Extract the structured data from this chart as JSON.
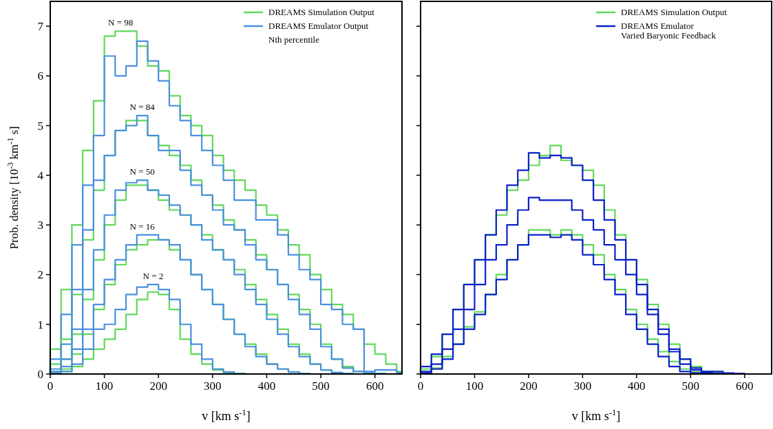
{
  "chart_data": [
    {
      "type": "histogram",
      "xlabel": "v [km s$^{-1}$]",
      "ylabel": "Prob. density [10$^{-3}$ km$^{-1}$ s]",
      "xlim": [
        0,
        650
      ],
      "ylim": [
        0,
        7.5
      ],
      "xticks": [
        0,
        100,
        200,
        300,
        400,
        500,
        600
      ],
      "yticks": [
        0,
        1,
        2,
        3,
        4,
        5,
        6,
        7
      ],
      "legend": "top right",
      "grid": false,
      "bins": [
        0,
        20,
        40,
        60,
        80,
        100,
        120,
        140,
        160,
        180,
        200,
        220,
        240,
        260,
        280,
        300,
        320,
        340,
        360,
        380,
        400,
        420,
        440,
        460,
        480,
        500,
        520,
        540,
        560,
        580,
        600,
        620,
        640,
        650
      ],
      "annotations": [
        "N = 98",
        "N = 84",
        "N = 50",
        "N = 16",
        "N = 2",
        "Nth percentile"
      ],
      "series": [
        {
          "name": "DREAMS Simulation Output",
          "color": "#5fd85a",
          "values": [
            0.5,
            1.7,
            3.0,
            4.5,
            5.5,
            6.8,
            6.9,
            6.9,
            6.6,
            6.2,
            6.1,
            5.6,
            5.2,
            5.0,
            4.8,
            4.4,
            4.1,
            3.9,
            3.7,
            3.4,
            3.2,
            2.9,
            2.6,
            2.4,
            2.0,
            1.7,
            1.4,
            1.2,
            0.9,
            0.6,
            0.4,
            0.2,
            0.05
          ]
        },
        {
          "name": "DREAMS Emulator Output",
          "color": "#4a8fe0",
          "values": [
            0.3,
            1.2,
            2.6,
            3.8,
            4.8,
            6.4,
            6.0,
            6.2,
            6.7,
            6.3,
            5.9,
            5.4,
            5.1,
            4.8,
            4.5,
            4.2,
            3.9,
            3.5,
            3.5,
            3.1,
            3.1,
            2.8,
            2.4,
            2.1,
            1.9,
            1.4,
            1.3,
            1.0,
            0.9,
            0.05,
            0.08,
            0.08,
            0.03
          ]
        },
        {
          "color": "#5ed85b",
          "values": [
            0.2,
            0.7,
            1.6,
            2.7,
            3.7,
            4.4,
            4.9,
            5.1,
            5.1,
            4.8,
            4.6,
            4.4,
            4.2,
            3.9,
            3.6,
            3.4,
            3.1,
            2.9,
            2.7,
            2.4,
            2.1,
            1.8,
            1.6,
            1.3,
            1.0,
            0.6,
            0.3,
            0.15,
            0.05,
            0.02,
            0.01,
            0,
            0
          ]
        },
        {
          "color": "#4b8fe0",
          "values": [
            0.1,
            0.6,
            1.7,
            2.9,
            3.9,
            4.4,
            4.9,
            5.0,
            5.2,
            4.8,
            4.5,
            4.5,
            4.1,
            3.8,
            3.6,
            3.3,
            3.0,
            2.9,
            2.6,
            2.3,
            2.1,
            1.8,
            1.5,
            1.2,
            0.9,
            0.55,
            0.3,
            0.12,
            0.05,
            0.02,
            0.01,
            0,
            0
          ]
        },
        {
          "color": "#5fd95a",
          "values": [
            0.05,
            0.3,
            0.8,
            1.5,
            2.3,
            3.0,
            3.5,
            3.8,
            3.8,
            3.7,
            3.5,
            3.3,
            3.2,
            3.0,
            2.8,
            2.5,
            2.3,
            2.1,
            1.8,
            1.5,
            1.2,
            0.9,
            0.6,
            0.4,
            0.2,
            0.08,
            0.03,
            0.01,
            0,
            0,
            0,
            0,
            0
          ]
        },
        {
          "color": "#4a90e0",
          "values": [
            0.05,
            0.3,
            0.9,
            1.7,
            2.5,
            3.2,
            3.7,
            3.85,
            3.9,
            3.7,
            3.6,
            3.4,
            3.2,
            3.0,
            2.7,
            2.5,
            2.3,
            2.0,
            1.7,
            1.4,
            1.1,
            0.8,
            0.55,
            0.35,
            0.2,
            0.08,
            0.03,
            0.01,
            0,
            0,
            0,
            0,
            0
          ]
        },
        {
          "color": "#60d85a",
          "values": [
            0.02,
            0.1,
            0.4,
            0.8,
            1.3,
            1.8,
            2.2,
            2.5,
            2.6,
            2.7,
            2.7,
            2.5,
            2.3,
            2.0,
            1.7,
            1.4,
            1.1,
            0.8,
            0.6,
            0.4,
            0.2,
            0.1,
            0.04,
            0.01,
            0,
            0,
            0,
            0,
            0,
            0,
            0,
            0,
            0
          ]
        },
        {
          "color": "#4a8fe1",
          "values": [
            0.02,
            0.15,
            0.5,
            0.9,
            1.4,
            1.9,
            2.3,
            2.6,
            2.8,
            2.8,
            2.7,
            2.6,
            2.3,
            2.0,
            1.7,
            1.4,
            1.1,
            0.8,
            0.55,
            0.35,
            0.2,
            0.1,
            0.04,
            0.01,
            0,
            0,
            0,
            0,
            0,
            0,
            0,
            0,
            0
          ]
        },
        {
          "color": "#5fd75a",
          "values": [
            0,
            0.05,
            0.15,
            0.3,
            0.5,
            0.7,
            0.9,
            1.2,
            1.5,
            1.65,
            1.6,
            1.3,
            0.7,
            0.4,
            0.2,
            0.08,
            0.03,
            0.01,
            0,
            0,
            0,
            0,
            0,
            0,
            0,
            0,
            0,
            0,
            0,
            0,
            0,
            0,
            0
          ]
        },
        {
          "color": "#498fe0",
          "values": [
            0,
            0.05,
            0.2,
            0.5,
            0.9,
            1.0,
            1.3,
            1.6,
            1.75,
            1.8,
            1.7,
            1.5,
            1.0,
            0.6,
            0.3,
            0.1,
            0.04,
            0.01,
            0,
            0,
            0,
            0,
            0,
            0,
            0,
            0,
            0,
            0,
            0,
            0,
            0,
            0,
            0
          ]
        }
      ]
    },
    {
      "type": "histogram",
      "xlabel": "v [km s$^{-1}$]",
      "xlim": [
        0,
        650
      ],
      "ylim": [
        0,
        7.5
      ],
      "xticks": [
        0,
        100,
        200,
        300,
        400,
        500,
        600
      ],
      "yticks": [
        0,
        1,
        2,
        3,
        4,
        5,
        6,
        7
      ],
      "tick_labels": "x",
      "legend": "top right",
      "grid": false,
      "bins": [
        0,
        20,
        40,
        60,
        80,
        100,
        120,
        140,
        160,
        180,
        200,
        220,
        240,
        260,
        280,
        300,
        320,
        340,
        360,
        380,
        400,
        420,
        440,
        460,
        480,
        500,
        520,
        540,
        560,
        580,
        600,
        620,
        640,
        650
      ],
      "series": [
        {
          "name": "DREAMS Simulation Output",
          "color": "#5fd85a",
          "values": [
            0.1,
            0.35,
            0.8,
            1.3,
            1.8,
            2.3,
            2.8,
            3.2,
            3.7,
            3.9,
            4.2,
            4.4,
            4.6,
            4.3,
            4.2,
            4.1,
            3.8,
            3.3,
            2.8,
            2.3,
            1.9,
            1.4,
            1.0,
            0.6,
            0.3,
            0.15,
            0.05,
            0.03,
            0.01,
            0,
            0,
            0,
            0
          ]
        },
        {
          "color": "#5ed85b",
          "values": [
            0.02,
            0.12,
            0.35,
            0.6,
            0.95,
            1.25,
            1.6,
            2.0,
            2.3,
            2.6,
            2.9,
            2.9,
            2.8,
            2.9,
            2.8,
            2.6,
            2.4,
            2.0,
            1.7,
            1.3,
            1.0,
            0.7,
            0.45,
            0.25,
            0.1,
            0.04,
            0.02,
            0,
            0,
            0,
            0,
            0,
            0
          ]
        },
        {
          "name": "DREAMS Emulator\nVaried Baryonic Feedback",
          "color": "#0a1fc8",
          "values": [
            0.15,
            0.4,
            0.8,
            1.3,
            1.8,
            2.3,
            2.8,
            3.3,
            3.8,
            4.1,
            4.45,
            4.35,
            4.4,
            4.35,
            4.2,
            3.9,
            3.5,
            3.1,
            2.7,
            2.3,
            1.8,
            1.3,
            0.9,
            0.5,
            0.3,
            0.12,
            0.05,
            0.05,
            0.02,
            0.01,
            0,
            0,
            0
          ]
        },
        {
          "color": "#0b1fc8",
          "values": [
            0.05,
            0.2,
            0.5,
            0.9,
            1.3,
            1.8,
            2.3,
            2.6,
            3.0,
            3.3,
            3.55,
            3.5,
            3.5,
            3.5,
            3.3,
            3.1,
            2.9,
            2.6,
            2.3,
            2.0,
            1.6,
            1.2,
            0.8,
            0.45,
            0.2,
            0.08,
            0.03,
            0.01,
            0,
            0,
            0,
            0,
            0
          ]
        },
        {
          "color": "#0a20c8",
          "values": [
            0.02,
            0.1,
            0.3,
            0.6,
            0.9,
            1.2,
            1.6,
            1.9,
            2.3,
            2.6,
            2.8,
            2.8,
            2.75,
            2.8,
            2.7,
            2.4,
            2.2,
            1.9,
            1.6,
            1.2,
            0.9,
            0.6,
            0.35,
            0.15,
            0.05,
            0.02,
            0.01,
            0,
            0,
            0,
            0,
            0,
            0
          ]
        }
      ]
    }
  ]
}
